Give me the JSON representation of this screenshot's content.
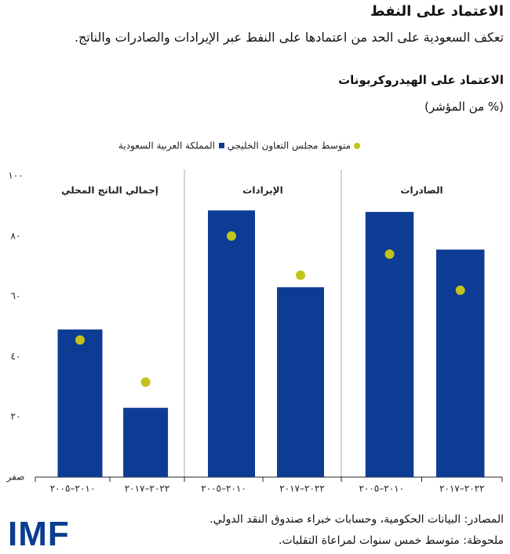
{
  "chart_data": {
    "type": "bar",
    "title": "الاعتماد على النفط",
    "subtitle": "تعكف السعودية على الحد من اعتمادها على النفط عبر الإيرادات والصادرات والناتج.",
    "chart_title": "الاعتماد على الهيدروكربونات",
    "unit": "(% من المؤشر)",
    "panels": [
      "إجمالي الناتج المحلي",
      "الإيرادات",
      "الصادرات"
    ],
    "categories": [
      "٢٠١٠–٢٠٠٥",
      "٢٠٢٢–٢٠١٧"
    ],
    "series": [
      {
        "name": "المملكة العربية السعودية",
        "color": "#0d3c94",
        "values": [
          [
            49,
            23
          ],
          [
            88.5,
            63
          ],
          [
            88,
            75.5
          ]
        ]
      },
      {
        "name": "متوسط مجلس التعاون الخليجي",
        "color": "#c3c31a",
        "values": [
          [
            45.5,
            31.5
          ],
          [
            80,
            67
          ],
          [
            74,
            62
          ]
        ]
      }
    ],
    "ylim": [
      0,
      100
    ],
    "yticks": [
      {
        "value": 0,
        "label": "صفر"
      },
      {
        "value": 20,
        "label": "٢٠"
      },
      {
        "value": 40,
        "label": "٤٠"
      },
      {
        "value": 60,
        "label": "٦٠"
      },
      {
        "value": 80,
        "label": "٨٠"
      },
      {
        "value": 100,
        "label": "١٠٠"
      }
    ],
    "source": "المصادر: البيانات الحكومية، وحسابات خبراء صندوق النقد الدولي.",
    "note": "ملحوظة: متوسط خمس سنوات لمراعاة التقلبات.",
    "logo": "IMF"
  }
}
